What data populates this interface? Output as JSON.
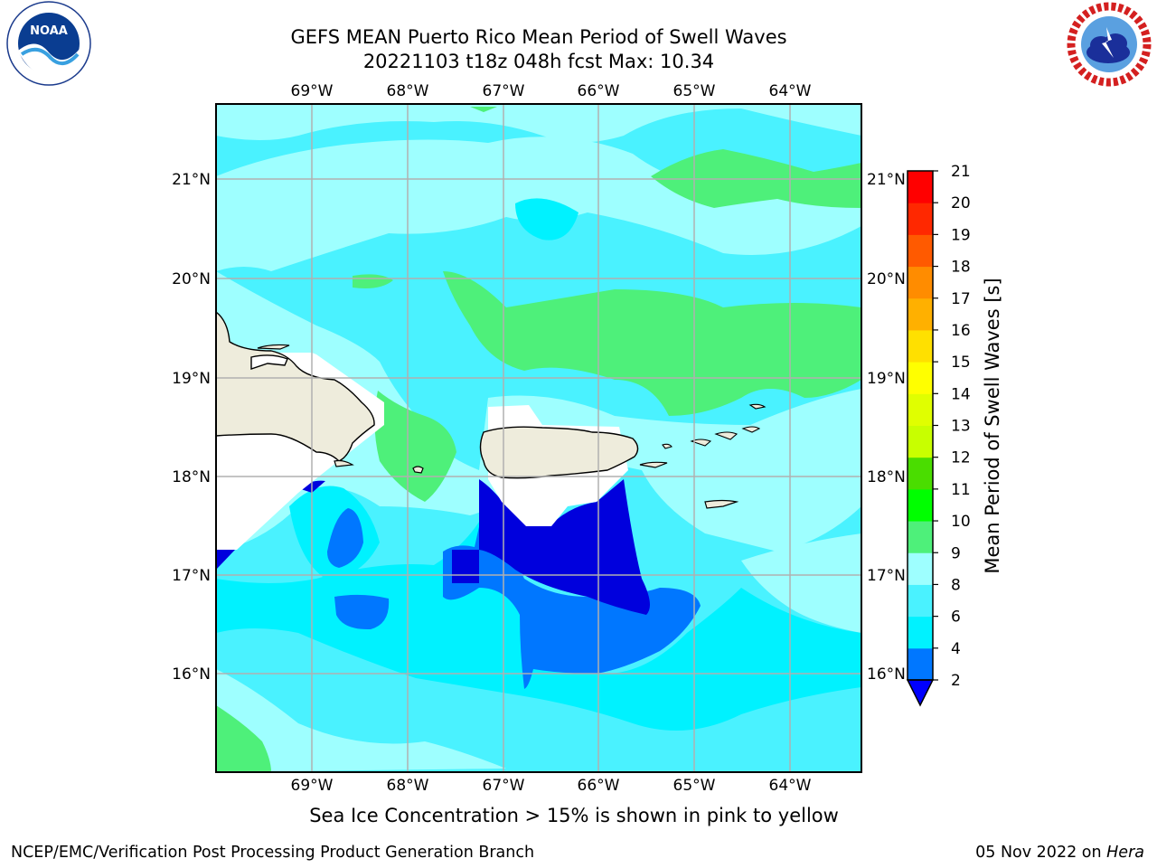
{
  "title_line1": "GEFS MEAN Puerto Rico Mean Period of Swell Waves",
  "title_line2": "20221103 t18z 048h fcst   Max: 10.34",
  "map": {
    "lon_labels": [
      "69°W",
      "68°W",
      "67°W",
      "66°W",
      "65°W",
      "64°W"
    ],
    "lat_labels": [
      "21°N",
      "20°N",
      "19°N",
      "18°N",
      "17°N",
      "16°N"
    ],
    "lon_values": [
      -69,
      -68,
      -67,
      -66,
      -65,
      -64
    ],
    "lat_values": [
      21,
      20,
      19,
      18,
      17,
      16
    ],
    "extent": {
      "lon_min": -70.0,
      "lon_max": -63.25,
      "lat_min": 15.0,
      "lat_max": 21.75
    },
    "land_color": "#eeecdc",
    "grid_color": "#b0b0b0",
    "places": [
      "Hispaniola",
      "Puerto Rico",
      "Virgin Islands",
      "St. Croix"
    ]
  },
  "colorbar": {
    "label": "Mean Period of Swell Waves [s]",
    "tick_labels": [
      "2",
      "4",
      "6",
      "8",
      "9",
      "10",
      "11",
      "12",
      "13",
      "14",
      "15",
      "16",
      "17",
      "18",
      "19",
      "20",
      "21"
    ],
    "levels": [
      2,
      4,
      6,
      8,
      9,
      10,
      11,
      12,
      13,
      14,
      15,
      16,
      17,
      18,
      19,
      20,
      21
    ],
    "colors": [
      "#0000ff",
      "#0077ff",
      "#00f2ff",
      "#4af2ff",
      "#9effff",
      "#4ef07a",
      "#00ff00",
      "#4add00",
      "#c8ff00",
      "#e0ff00",
      "#ffff00",
      "#ffe000",
      "#ffb000",
      "#ff8c00",
      "#ff5a00",
      "#ff2800",
      "#ff0000"
    ],
    "under_color": "#0000ff"
  },
  "logos": {
    "left_text": "NOAA",
    "left_ring_text": "NATIONAL OCEANIC AND ATMOSPHERIC ADMINISTRATION · U.S. DEPARTMENT OF COMMERCE",
    "right_ring_text": "NATIONAL WEATHER SERVICE"
  },
  "footer_note": "Sea Ice Concentration > 15% is shown in pink to yellow",
  "credit": "NCEP/EMC/Verification Post Processing Product Generation Branch",
  "date_prefix": "05 Nov 2022 on ",
  "date_host": "Hera"
}
